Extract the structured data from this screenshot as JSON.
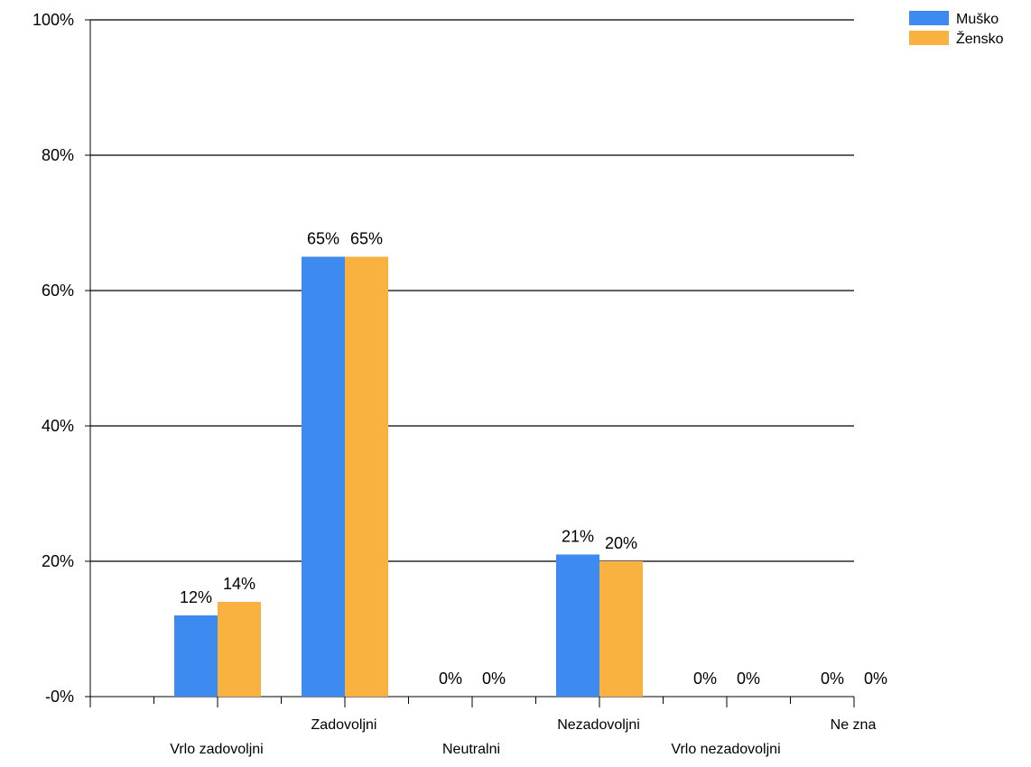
{
  "chart_data": {
    "type": "bar",
    "categories": [
      "Vrlo zadovoljni",
      "Zadovoljni",
      "Neutralni",
      "Nezadovoljni",
      "Vrlo nezadovoljni",
      "Ne zna"
    ],
    "series": [
      {
        "name": "Muško",
        "values": [
          12,
          65,
          0,
          21,
          0,
          0
        ],
        "labels": [
          "12%",
          "65%",
          "0%",
          "21%",
          "0%",
          "0%"
        ],
        "color": "#3d8af0"
      },
      {
        "name": "Žensko",
        "values": [
          14,
          65,
          0,
          20,
          0,
          0
        ],
        "labels": [
          "14%",
          "65%",
          "0%",
          "20%",
          "0%",
          "0%"
        ],
        "color": "#f9b13f"
      }
    ],
    "yticks": [
      {
        "value": 0,
        "label": "-0%"
      },
      {
        "value": 20,
        "label": "20%"
      },
      {
        "value": 40,
        "label": "40%"
      },
      {
        "value": 60,
        "label": "60%"
      },
      {
        "value": 80,
        "label": "80%"
      },
      {
        "value": 100,
        "label": "100%"
      }
    ],
    "ylim": [
      0,
      100
    ],
    "grid": true,
    "legend_position": "top-right"
  }
}
